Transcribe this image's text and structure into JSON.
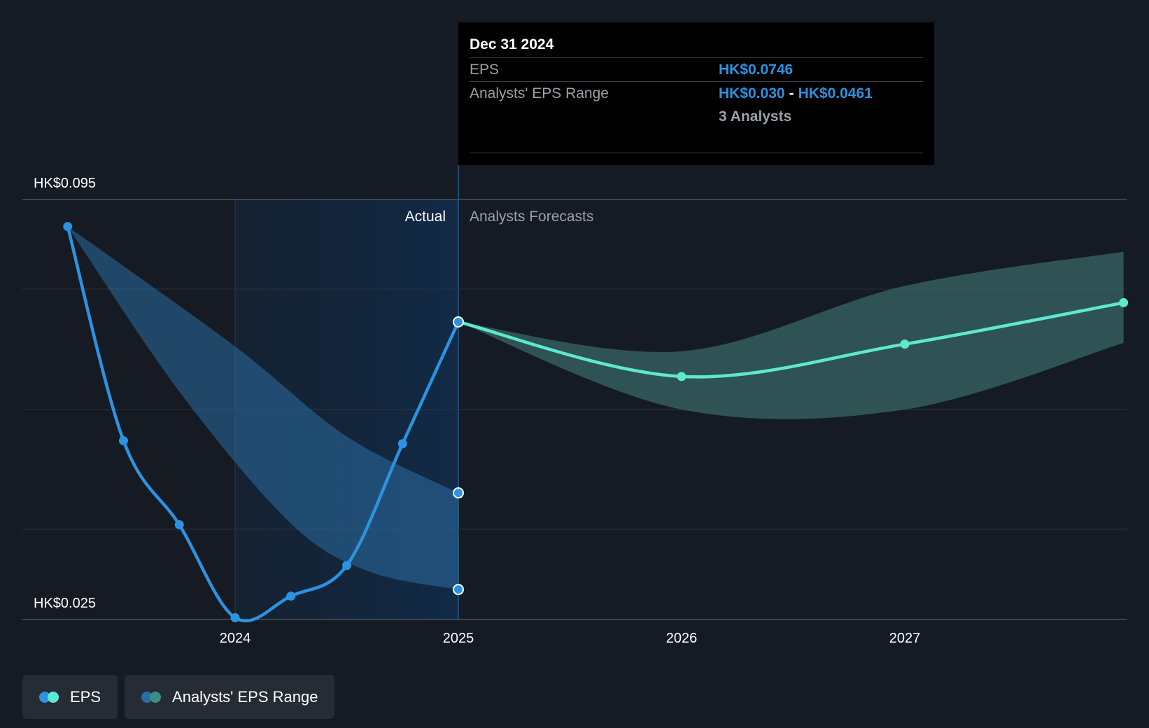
{
  "chart_data": {
    "type": "line",
    "y_axis": {
      "min": 0.025,
      "max": 0.095,
      "labels": [
        "HK$0.095",
        "HK$0.025"
      ]
    },
    "x_axis": {
      "min": 2023.07,
      "max": 2027.98,
      "ticks": [
        {
          "value": 2024.0,
          "label": "2024"
        },
        {
          "value": 2025.0,
          "label": "2025"
        },
        {
          "value": 2026.0,
          "label": "2026"
        },
        {
          "value": 2027.0,
          "label": "2027"
        }
      ]
    },
    "sections": {
      "actual": "Actual",
      "forecast": "Analysts Forecasts"
    },
    "series": [
      {
        "name": "EPS",
        "color": "#2b93e0",
        "kind": "actual",
        "x": [
          2023.25,
          2023.5,
          2023.75,
          2024.0,
          2024.25,
          2024.5,
          2024.75,
          2025.0
        ],
        "y": [
          0.0905,
          0.0548,
          0.0408,
          0.0253,
          0.0289,
          0.034,
          0.0543,
          0.0746
        ]
      },
      {
        "name": "EPS",
        "color": "#5ee8d0",
        "kind": "forecast",
        "x": [
          2025.0,
          2026.0,
          2027.0,
          2027.98
        ],
        "y": [
          0.0746,
          0.0655,
          0.0709,
          0.0778
        ]
      }
    ],
    "range_actual": {
      "name": "Analysts' EPS Range",
      "color": "#2b6ea3",
      "x": [
        2023.25,
        2025.0
      ],
      "low": [
        0.0905,
        0.03
      ],
      "high": [
        0.0905,
        0.0461
      ]
    },
    "range_forecast": {
      "name": "Analysts' EPS Range",
      "color": "#3a6b6a",
      "x": [
        2025.0,
        2026.0,
        2027.0,
        2027.98
      ],
      "low": [
        0.0746,
        0.06,
        0.06,
        0.0711
      ],
      "high": [
        0.0746,
        0.0697,
        0.0806,
        0.0863
      ]
    },
    "gridlines": true
  },
  "tooltip": {
    "date": "Dec 31 2024",
    "eps_label": "EPS",
    "eps_value": "HK$0.0746",
    "range_label": "Analysts' EPS Range",
    "range_low": "HK$0.030",
    "range_sep": "-",
    "range_high": "HK$0.0461",
    "analysts": "3 Analysts"
  },
  "legend": [
    {
      "label": "EPS",
      "colors": [
        "#2b93e0",
        "#5ee8d0"
      ]
    },
    {
      "label": "Analysts' EPS Range",
      "colors": [
        "#2b6ea3",
        "#3a8f84"
      ]
    }
  ]
}
